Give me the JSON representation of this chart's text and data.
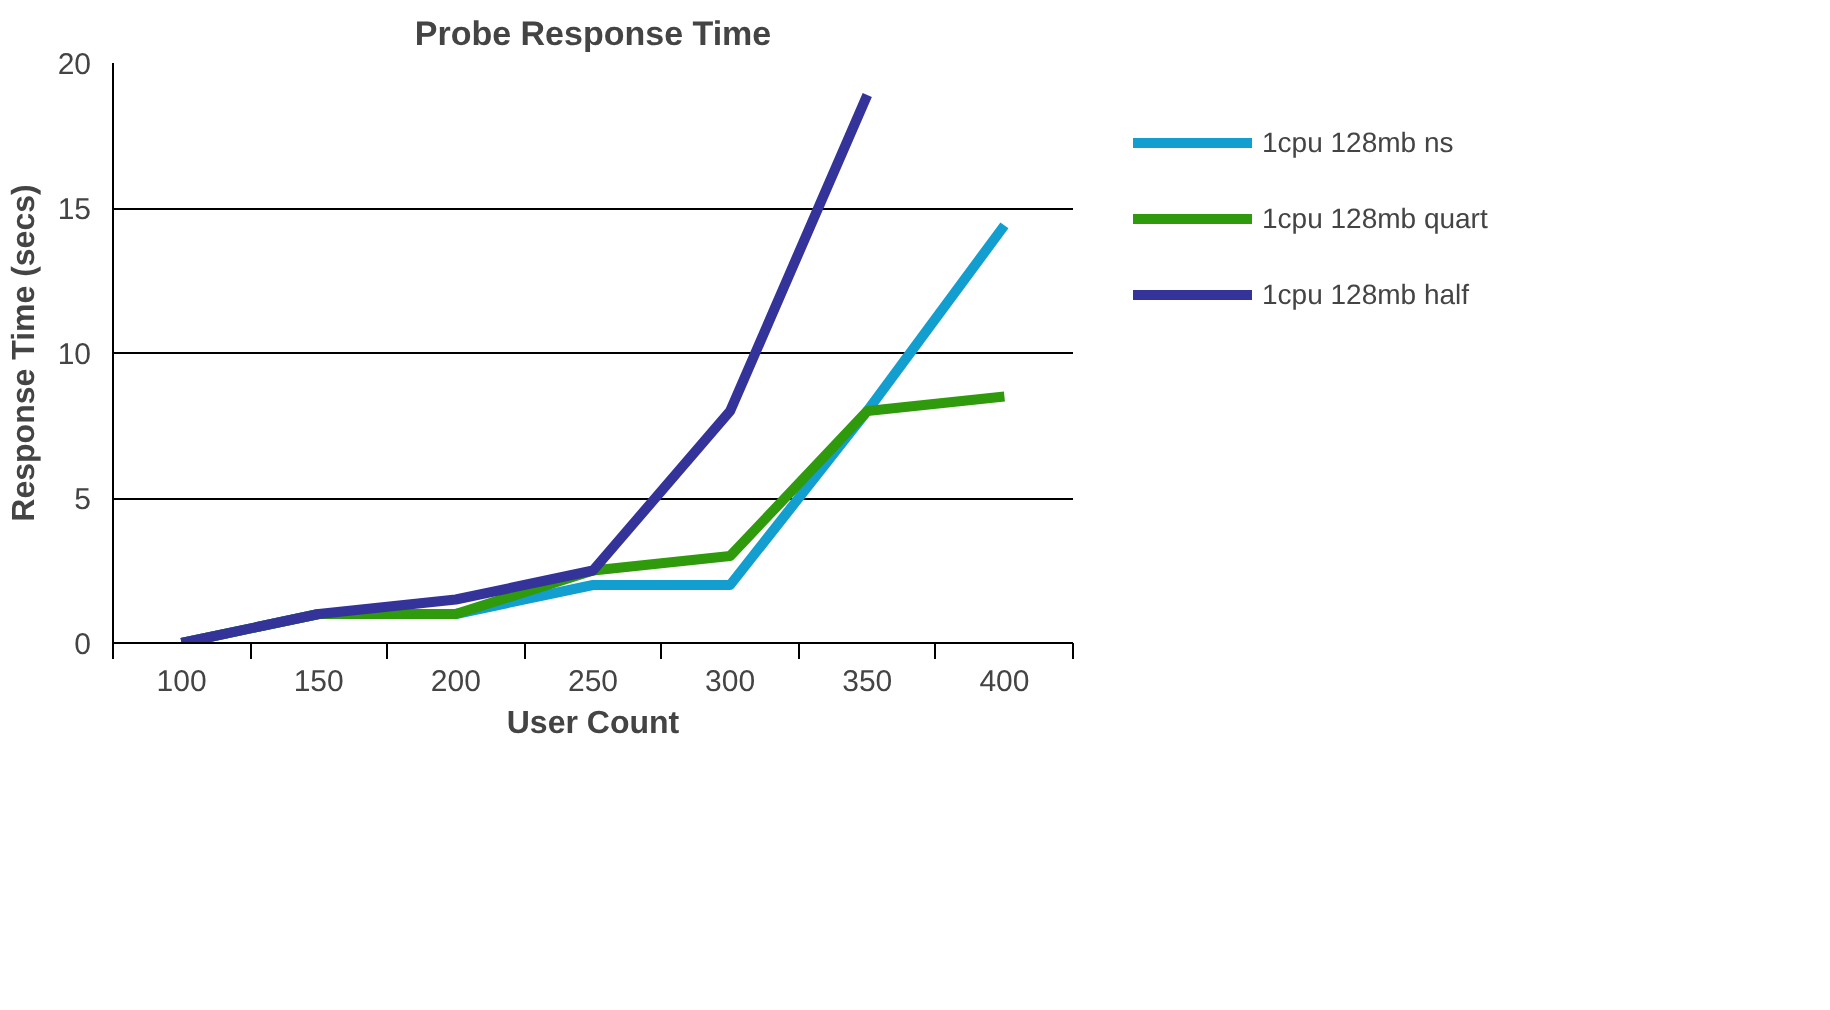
{
  "chart_data": {
    "type": "line",
    "title": "Probe Response Time",
    "xlabel": "User Count",
    "ylabel": "Response Time (secs)",
    "categories": [
      "100",
      "150",
      "200",
      "250",
      "300",
      "350",
      "400"
    ],
    "series": [
      {
        "name": "1cpu 128mb ns",
        "color": "#129fcf",
        "values": [
          0,
          1,
          1,
          2,
          2,
          8,
          14.4
        ]
      },
      {
        "name": "1cpu 128mb quart",
        "color": "#2f9a0c",
        "values": [
          0,
          1,
          1,
          2.5,
          3,
          8,
          8.5
        ]
      },
      {
        "name": "1cpu 128mb half",
        "color": "#33339a",
        "values": [
          0,
          1,
          1.5,
          2.5,
          8,
          18.9,
          null
        ]
      }
    ],
    "ylim": [
      0,
      20
    ],
    "yticks": [
      0,
      5,
      10,
      15,
      20
    ],
    "grid": "y",
    "legend": "right",
    "marker": "none",
    "line_style": "solid"
  }
}
